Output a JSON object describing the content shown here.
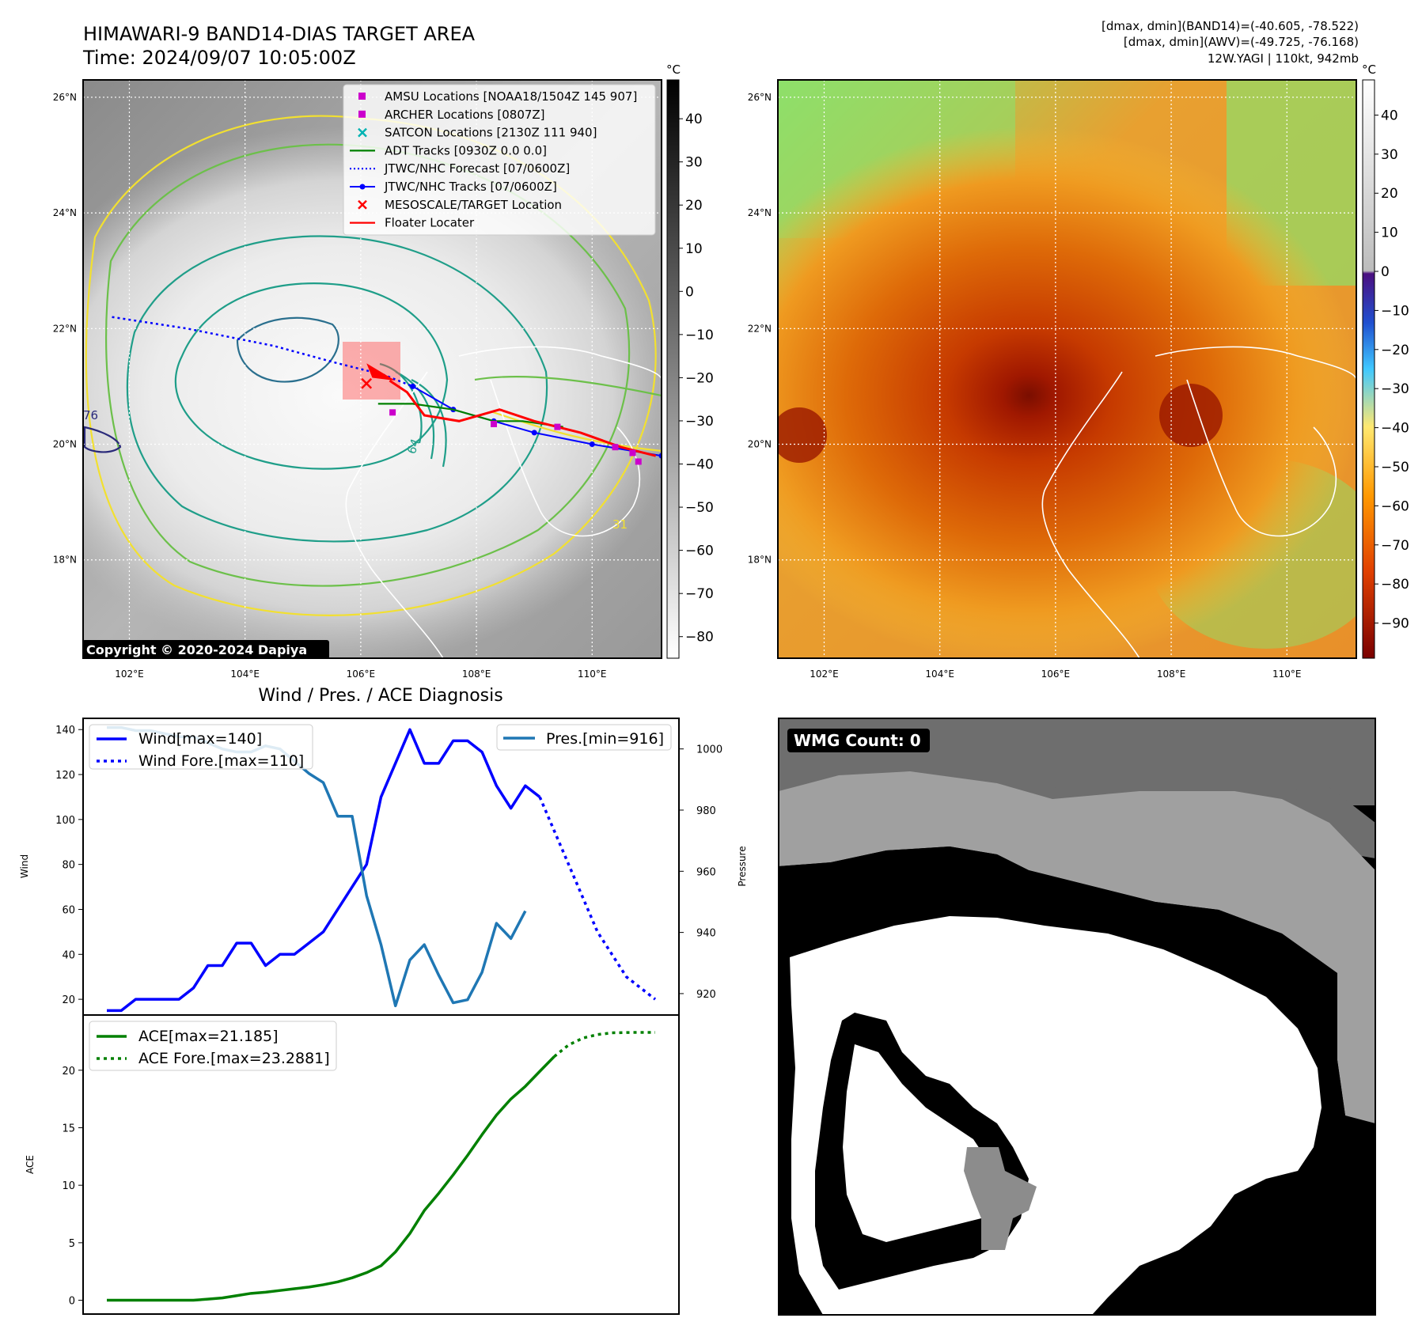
{
  "header": {
    "title_line1": "HIMAWARI-9 BAND14-DIAS TARGET AREA",
    "title_line2": "Time: 2024/09/07 10:05:00Z",
    "info_line1": "[dmax, dmin](BAND14)=(-40.605, -78.522)",
    "info_line2": "[dmax, dmin](AWV)=(-49.725, -76.168)",
    "info_line3": "12W.YAGI | 110kt, 942mb"
  },
  "maps": {
    "lat_labels": [
      "26°N",
      "24°N",
      "22°N",
      "20°N",
      "18°N"
    ],
    "lon_labels": [
      "102°E",
      "104°E",
      "106°E",
      "108°E",
      "110°E"
    ],
    "lat_values": [
      26,
      24,
      22,
      20,
      18
    ],
    "lon_values": [
      102,
      104,
      106,
      108,
      110
    ],
    "extent": {
      "lon_min": 101.2,
      "lon_max": 111.2,
      "lat_min": 16.3,
      "lat_max": 26.3
    },
    "copyright": "Copyright © 2020-2024 Dapiya",
    "contour_labels": [
      "76",
      "64",
      "31"
    ],
    "colors": {
      "track_blue": "#0000ff",
      "floater_red": "#ff0000",
      "adt_green": "#008000",
      "amsu_magenta": "#cc00cc",
      "contour_yellow": "#f2e030",
      "contour_green": "#6cc04a",
      "contour_teal": "#1f9e89",
      "contour_dark": "#2a6f8e"
    }
  },
  "legend_map": {
    "items": [
      {
        "label": "AMSU Locations [NOAA18/1504Z 145 907]",
        "marker": "square",
        "color": "#cc00cc"
      },
      {
        "label": "ARCHER Locations [0807Z]",
        "marker": "square",
        "color": "#cc00cc"
      },
      {
        "label": "SATCON Locations [2130Z 111 940]",
        "marker": "x",
        "color": "#00b3b3"
      },
      {
        "label": "ADT Tracks [0930Z 0.0 0.0]",
        "marker": "line",
        "color": "#008000"
      },
      {
        "label": "JTWC/NHC Forecast [07/0600Z]",
        "marker": "dotted",
        "color": "#0000ff"
      },
      {
        "label": "JTWC/NHC Tracks [07/0600Z]",
        "marker": "line-dot",
        "color": "#0000ff"
      },
      {
        "label": "MESOSCALE/TARGET Location",
        "marker": "x",
        "color": "#ff0000"
      },
      {
        "label": "Floater Locater",
        "marker": "line",
        "color": "#ff0000"
      }
    ]
  },
  "colorbar_ir": {
    "unit": "°C",
    "ticks": [
      "40",
      "30",
      "20",
      "10",
      "0",
      "−10",
      "−20",
      "−30",
      "−40",
      "−50",
      "−60",
      "−70",
      "−80"
    ],
    "tick_values": [
      40,
      30,
      20,
      10,
      0,
      -10,
      -20,
      -30,
      -40,
      -50,
      -60,
      -70,
      -80
    ],
    "range": [
      -85,
      49
    ]
  },
  "colorbar_wv": {
    "unit": "°C",
    "ticks": [
      "40",
      "30",
      "20",
      "10",
      "0",
      "−10",
      "−20",
      "−30",
      "−40",
      "−50",
      "−60",
      "−70",
      "−80",
      "−90"
    ],
    "tick_values": [
      40,
      30,
      20,
      10,
      0,
      -10,
      -20,
      -30,
      -40,
      -50,
      -60,
      -70,
      -80,
      -90
    ],
    "range": [
      -99,
      49
    ]
  },
  "diag": {
    "title": "Wind / Pres. / ACE Diagnosis",
    "wmg_label": "WMG Count: 0"
  },
  "chart_data": [
    {
      "type": "line",
      "ylabel": "Wind",
      "y2label": "Pressure",
      "ylim": [
        13,
        145
      ],
      "y2lim": [
        913,
        1010
      ],
      "yticks": [
        20,
        40,
        60,
        80,
        100,
        120,
        140
      ],
      "y2ticks": [
        920,
        940,
        960,
        980,
        1000
      ],
      "legend_left": [
        {
          "label": "Wind[max=140]",
          "style": "solid",
          "color": "#0000ff"
        },
        {
          "label": "Wind Fore.[max=110]",
          "style": "dotted",
          "color": "#0000ff"
        }
      ],
      "legend_right": [
        {
          "label": "Pres.[min=916]",
          "style": "solid",
          "color": "#1f77b4"
        }
      ],
      "series": [
        {
          "name": "Wind[max=140]",
          "axis": "left",
          "color": "#0000ff",
          "style": "solid",
          "values": [
            15,
            15,
            20,
            20,
            20,
            20,
            25,
            35,
            35,
            45,
            45,
            35,
            40,
            40,
            45,
            50,
            60,
            70,
            80,
            110,
            125,
            140,
            125,
            125,
            135,
            135,
            130,
            115,
            105,
            115,
            110
          ]
        },
        {
          "name": "Wind Fore.[max=110]",
          "axis": "left",
          "color": "#0000ff",
          "style": "dotted",
          "start_index": 30,
          "values": [
            110,
            95,
            80,
            65,
            50,
            40,
            30,
            25,
            20
          ]
        },
        {
          "name": "Pres.[min=916]",
          "axis": "right",
          "color": "#1f77b4",
          "style": "solid",
          "values": [
            1007,
            1007,
            1006,
            1006,
            1005,
            1004,
            1004,
            1002,
            1000,
            999,
            999,
            1001,
            1000,
            996,
            992,
            989,
            978,
            978,
            952,
            936,
            916,
            931,
            936,
            926,
            917,
            918,
            927,
            943,
            938,
            947
          ]
        }
      ],
      "x_count": 39
    },
    {
      "type": "line",
      "ylabel": "ACE",
      "ylim": [
        -1.2,
        24.8
      ],
      "yticks": [
        0,
        5,
        10,
        15,
        20
      ],
      "legend": [
        {
          "label": "ACE[max=21.185]",
          "style": "solid",
          "color": "#008000"
        },
        {
          "label": "ACE Fore.[max=23.2881]",
          "style": "dotted",
          "color": "#008000"
        }
      ],
      "series": [
        {
          "name": "ACE[max=21.185]",
          "color": "#008000",
          "style": "solid",
          "values": [
            0,
            0,
            0,
            0,
            0,
            0,
            0,
            0.1,
            0.2,
            0.4,
            0.6,
            0.7,
            0.85,
            1.0,
            1.15,
            1.35,
            1.6,
            1.95,
            2.4,
            3.0,
            4.2,
            5.8,
            7.8,
            9.3,
            10.9,
            12.6,
            14.4,
            16.1,
            17.5,
            18.6,
            19.9,
            21.185
          ]
        },
        {
          "name": "ACE Fore.[max=23.2881]",
          "color": "#008000",
          "style": "dotted",
          "start_index": 31,
          "values": [
            21.185,
            22.2,
            22.8,
            23.1,
            23.25,
            23.28,
            23.288,
            23.2881
          ]
        }
      ],
      "x_count": 39
    }
  ]
}
